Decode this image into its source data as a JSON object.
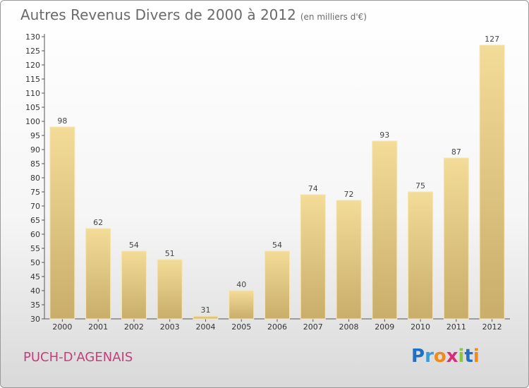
{
  "title": "Autres Revenus Divers de 2000 à 2012",
  "subtitle": "(en milliers d'€)",
  "location": "PUCH-D'AGENAIS",
  "logo": {
    "letters": [
      "P",
      "r",
      "o",
      "x",
      "i",
      "t",
      "i"
    ],
    "colors": [
      "#1f6fc4",
      "#3a9bd6",
      "#f08a1c",
      "#d62f7a",
      "#8cc63f",
      "#1f6fc4",
      "#f08a1c"
    ]
  },
  "chart_data": {
    "type": "bar",
    "categories": [
      "2000",
      "2001",
      "2002",
      "2003",
      "2004",
      "2005",
      "2006",
      "2007",
      "2008",
      "2009",
      "2010",
      "2011",
      "2012"
    ],
    "values": [
      98,
      62,
      54,
      51,
      31,
      40,
      54,
      74,
      72,
      93,
      75,
      87,
      127
    ],
    "value_labels": [
      "98",
      "62",
      "54",
      "51",
      "31",
      "40",
      "54",
      "74",
      "72",
      "93",
      "75",
      "87",
      "127"
    ],
    "title": "Autres Revenus Divers de 2000 à 2012",
    "xlabel": "",
    "ylabel": "",
    "ylim": [
      30,
      130
    ],
    "yticks": [
      "30",
      "35",
      "40",
      "45",
      "50",
      "55",
      "60",
      "65",
      "70",
      "75",
      "80",
      "85",
      "90",
      "95",
      "100",
      "105",
      "110",
      "115",
      "120",
      "125",
      "130"
    ],
    "grid": false,
    "bar_color": "#e8cf8a"
  }
}
